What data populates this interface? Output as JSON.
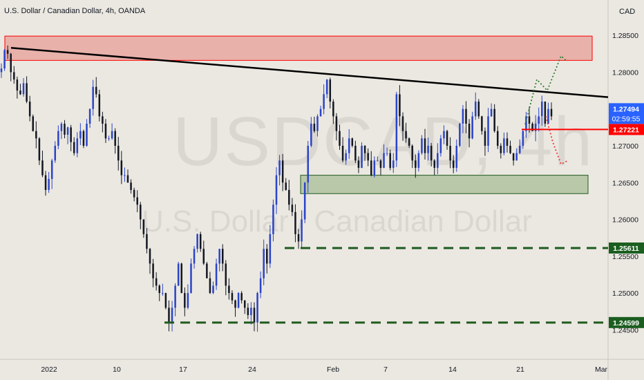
{
  "header": {
    "title": "U.S. Dollar / Canadian Dollar, 4h, OANDA",
    "currency": "CAD"
  },
  "watermark": {
    "symbol": "USDCAD, 4h",
    "name": "U.S. Dollar / Canadian Dollar"
  },
  "colors": {
    "background": "#ebe8e1",
    "bull_candle": "#2a44c8",
    "bear_candle": "#131722",
    "resistance_zone": "#e8b1aa",
    "support_zone": "#b9c8a9",
    "trendline": "#000000",
    "red_line": "#ff0000",
    "green_dashed": "#1e5a1e",
    "price_label_bg": "#2962ff",
    "red_label_bg": "#ff0000",
    "green_label_bg": "#1b5e20"
  },
  "chart_data": {
    "type": "candlestick",
    "symbol": "USDCAD",
    "timeframe": "4h",
    "ylim": [
      1.241,
      1.2898
    ],
    "y_ticks": [
      "1.28500",
      "1.28000",
      "1.27500",
      "1.27000",
      "1.26500",
      "1.26000",
      "1.25500",
      "1.25000",
      "1.24500"
    ],
    "x_ticks": [
      "2022",
      "10",
      "17",
      "24",
      "Feb",
      "7",
      "14",
      "21",
      "Mar"
    ],
    "price_labels": {
      "last_price": "1.27494",
      "countdown": "02:59:55",
      "red_level": "1.27221",
      "green_level_1": "1.25611",
      "green_level_2": "1.24599"
    },
    "levels": {
      "resistance_zone": [
        1.2816,
        1.2849
      ],
      "support_zone": [
        1.2635,
        1.266
      ],
      "red_line": 1.27221,
      "green_dashed_1": 1.25611,
      "green_dashed_2": 1.24599,
      "trendline_start": 1.2833,
      "trendline_end": 1.2766
    },
    "anchors": {
      "low_2022_01_14": 1.245,
      "low_2022_01_21": 1.245,
      "high_2022_01_28": 1.2795,
      "low_2022_01_27": 1.256
    },
    "scenarios": {
      "bullish": [
        1.2729,
        1.279,
        1.2775,
        1.2822,
        1.2815
      ],
      "bearish": [
        1.274,
        1.2705,
        1.2675,
        1.268
      ]
    },
    "closes": [
      1.2805,
      1.283,
      1.2825,
      1.28,
      1.279,
      1.2775,
      1.277,
      1.2785,
      1.276,
      1.274,
      1.272,
      1.271,
      1.268,
      1.266,
      1.264,
      1.2655,
      1.268,
      1.27,
      1.272,
      1.273,
      1.2715,
      1.2725,
      1.2705,
      1.269,
      1.271,
      1.272,
      1.27,
      1.273,
      1.275,
      1.278,
      1.277,
      1.274,
      1.273,
      1.271,
      1.271,
      1.272,
      1.27,
      1.268,
      1.266,
      1.266,
      1.265,
      1.264,
      1.263,
      1.262,
      1.26,
      1.258,
      1.256,
      1.254,
      1.252,
      1.251,
      1.25,
      1.25,
      1.248,
      1.246,
      1.248,
      1.251,
      1.254,
      1.25,
      1.248,
      1.25,
      1.254,
      1.256,
      1.258,
      1.256,
      1.254,
      1.252,
      1.25,
      1.251,
      1.254,
      1.256,
      1.254,
      1.251,
      1.25,
      1.249,
      1.248,
      1.25,
      1.249,
      1.248,
      1.247,
      1.248,
      1.246,
      1.25,
      1.252,
      1.256,
      1.254,
      1.258,
      1.262,
      1.266,
      1.268,
      1.265,
      1.264,
      1.262,
      1.261,
      1.258,
      1.257,
      1.26,
      1.265,
      1.27,
      1.273,
      1.272,
      1.274,
      1.275,
      1.277,
      1.279,
      1.276,
      1.274,
      1.272,
      1.27,
      1.268,
      1.269,
      1.271,
      1.27,
      1.268,
      1.267,
      1.27,
      1.269,
      1.268,
      1.266,
      1.268,
      1.268,
      1.267,
      1.269,
      1.269,
      1.267,
      1.268,
      1.277,
      1.274,
      1.272,
      1.271,
      1.27,
      1.268,
      1.267,
      1.269,
      1.271,
      1.269,
      1.27,
      1.268,
      1.267,
      1.269,
      1.271,
      1.272,
      1.27,
      1.268,
      1.267,
      1.27,
      1.273,
      1.275,
      1.273,
      1.271,
      1.274,
      1.276,
      1.274,
      1.272,
      1.27,
      1.274,
      1.275,
      1.272,
      1.27,
      1.269,
      1.271,
      1.27,
      1.269,
      1.268,
      1.269,
      1.27,
      1.272,
      1.274,
      1.273,
      1.272,
      1.273,
      1.274,
      1.276,
      1.273,
      1.275,
      1.274
    ],
    "candles": {
      "count": 175,
      "last_close": 1.27494
    }
  }
}
